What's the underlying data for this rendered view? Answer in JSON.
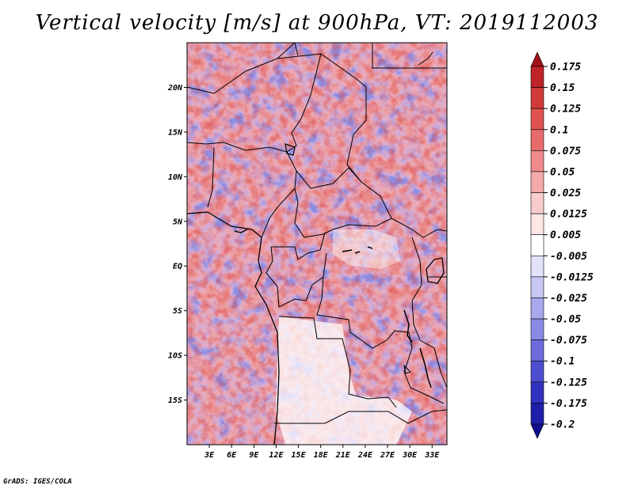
{
  "title": "Vertical velocity [m/s] at 900hPa, VT: 2019112003",
  "credit": "GrADS: IGES/COLA",
  "map": {
    "lon_range": [
      0,
      35
    ],
    "lat_range": [
      -20,
      25
    ],
    "lat_ticks": [
      {
        "lat": 20,
        "label": "20N"
      },
      {
        "lat": 15,
        "label": "15N"
      },
      {
        "lat": 10,
        "label": "10N"
      },
      {
        "lat": 5,
        "label": "5N"
      },
      {
        "lat": 0,
        "label": "EQ"
      },
      {
        "lat": -5,
        "label": "5S"
      },
      {
        "lat": -10,
        "label": "10S"
      },
      {
        "lat": -15,
        "label": "15S"
      }
    ],
    "lon_ticks": [
      {
        "lon": 3,
        "label": "3E"
      },
      {
        "lon": 6,
        "label": "6E"
      },
      {
        "lon": 9,
        "label": "9E"
      },
      {
        "lon": 12,
        "label": "12E"
      },
      {
        "lon": 15,
        "label": "15E"
      },
      {
        "lon": 18,
        "label": "18E"
      },
      {
        "lon": 21,
        "label": "21E"
      },
      {
        "lon": 24,
        "label": "24E"
      },
      {
        "lon": 27,
        "label": "27E"
      },
      {
        "lon": 30,
        "label": "30E"
      },
      {
        "lon": 33,
        "label": "33E"
      }
    ]
  },
  "colorbar": {
    "levels": [
      "0.175",
      "0.15",
      "0.125",
      "0.1",
      "0.075",
      "0.05",
      "0.025",
      "0.0125",
      "0.005",
      "-0.005",
      "-0.0125",
      "-0.025",
      "-0.05",
      "-0.075",
      "-0.1",
      "-0.125",
      "-0.175",
      "-0.2"
    ],
    "colors": [
      "#a01018",
      "#bd2328",
      "#d23a3a",
      "#e05252",
      "#e66b6b",
      "#ee8a8a",
      "#f4aaaa",
      "#f8cccc",
      "#fce6e6",
      "#ffffff",
      "#e2e2fa",
      "#c8c8f4",
      "#a8a8ee",
      "#8a8ae6",
      "#6c6cdc",
      "#4e4ed0",
      "#3232c0",
      "#1e1ea8",
      "#10108c"
    ]
  }
}
